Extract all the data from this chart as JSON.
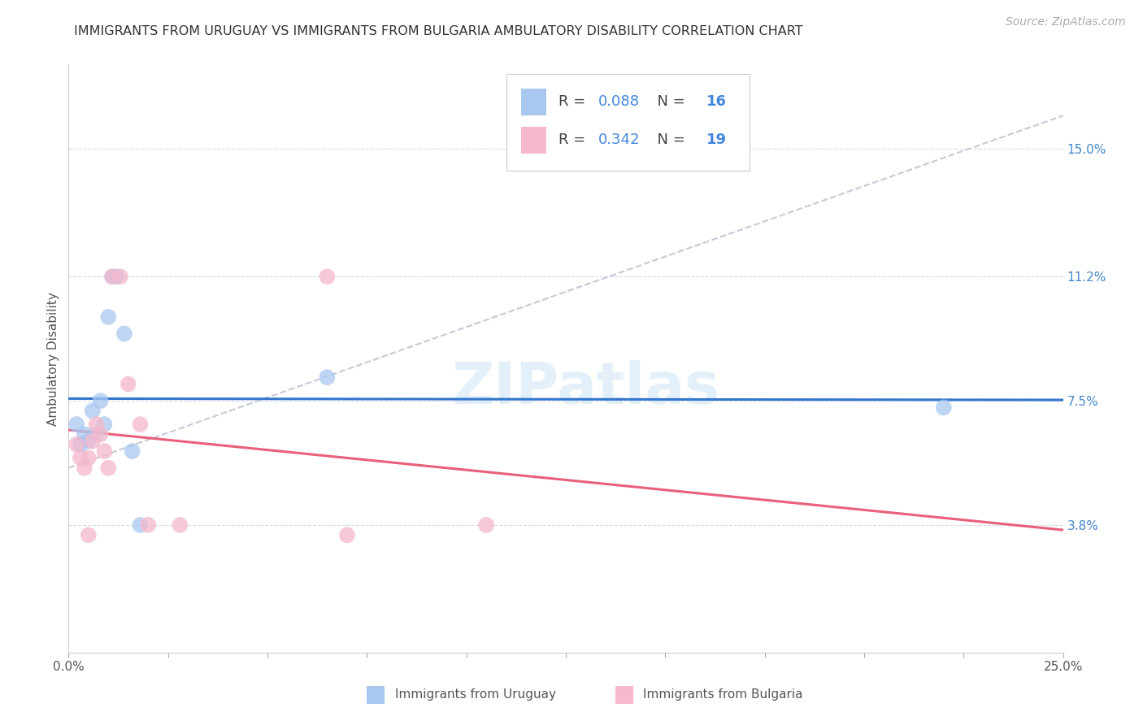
{
  "title": "IMMIGRANTS FROM URUGUAY VS IMMIGRANTS FROM BULGARIA AMBULATORY DISABILITY CORRELATION CHART",
  "source": "Source: ZipAtlas.com",
  "ylabel": "Ambulatory Disability",
  "xlim": [
    0.0,
    0.25
  ],
  "ylim": [
    0.0,
    0.175
  ],
  "yticks": [
    0.038,
    0.075,
    0.112,
    0.15
  ],
  "ytick_labels": [
    "3.8%",
    "7.5%",
    "11.2%",
    "15.0%"
  ],
  "xticks": [
    0.0,
    0.025,
    0.05,
    0.075,
    0.1,
    0.125,
    0.15,
    0.175,
    0.2,
    0.225,
    0.25
  ],
  "xtick_labels_show": [
    "0.0%",
    "",
    "",
    "",
    "",
    "",
    "",
    "",
    "",
    "",
    "25.0%"
  ],
  "uruguay_R": "0.088",
  "uruguay_N": "16",
  "bulgaria_R": "0.342",
  "bulgaria_N": "19",
  "uruguay_color": "#a8c8f0",
  "bulgaria_color": "#f5b8cc",
  "uruguay_line_color": "#3377cc",
  "bulgaria_line_color": "#e8607a",
  "trend_line_color": "#c8c8d8",
  "background_color": "#ffffff",
  "grid_color": "#d8d8e8",
  "uruguay_x": [
    0.002,
    0.004,
    0.005,
    0.006,
    0.007,
    0.008,
    0.009,
    0.01,
    0.011,
    0.012,
    0.014,
    0.016,
    0.018,
    0.065,
    0.22,
    0.003
  ],
  "uruguay_y": [
    0.068,
    0.065,
    0.063,
    0.072,
    0.065,
    0.075,
    0.068,
    0.1,
    0.112,
    0.112,
    0.095,
    0.06,
    0.038,
    0.082,
    0.073,
    0.062
  ],
  "bulgaria_x": [
    0.002,
    0.003,
    0.004,
    0.005,
    0.006,
    0.007,
    0.008,
    0.009,
    0.01,
    0.011,
    0.013,
    0.015,
    0.018,
    0.02,
    0.028,
    0.065,
    0.07,
    0.105,
    0.005
  ],
  "bulgaria_y": [
    0.062,
    0.058,
    0.055,
    0.058,
    0.063,
    0.068,
    0.065,
    0.06,
    0.055,
    0.112,
    0.112,
    0.08,
    0.068,
    0.038,
    0.038,
    0.112,
    0.035,
    0.038,
    0.035
  ],
  "watermark": "ZIPatlas",
  "title_fontsize": 11.5,
  "axis_label_fontsize": 11,
  "tick_fontsize": 11,
  "legend_fontsize": 13,
  "source_fontsize": 10
}
